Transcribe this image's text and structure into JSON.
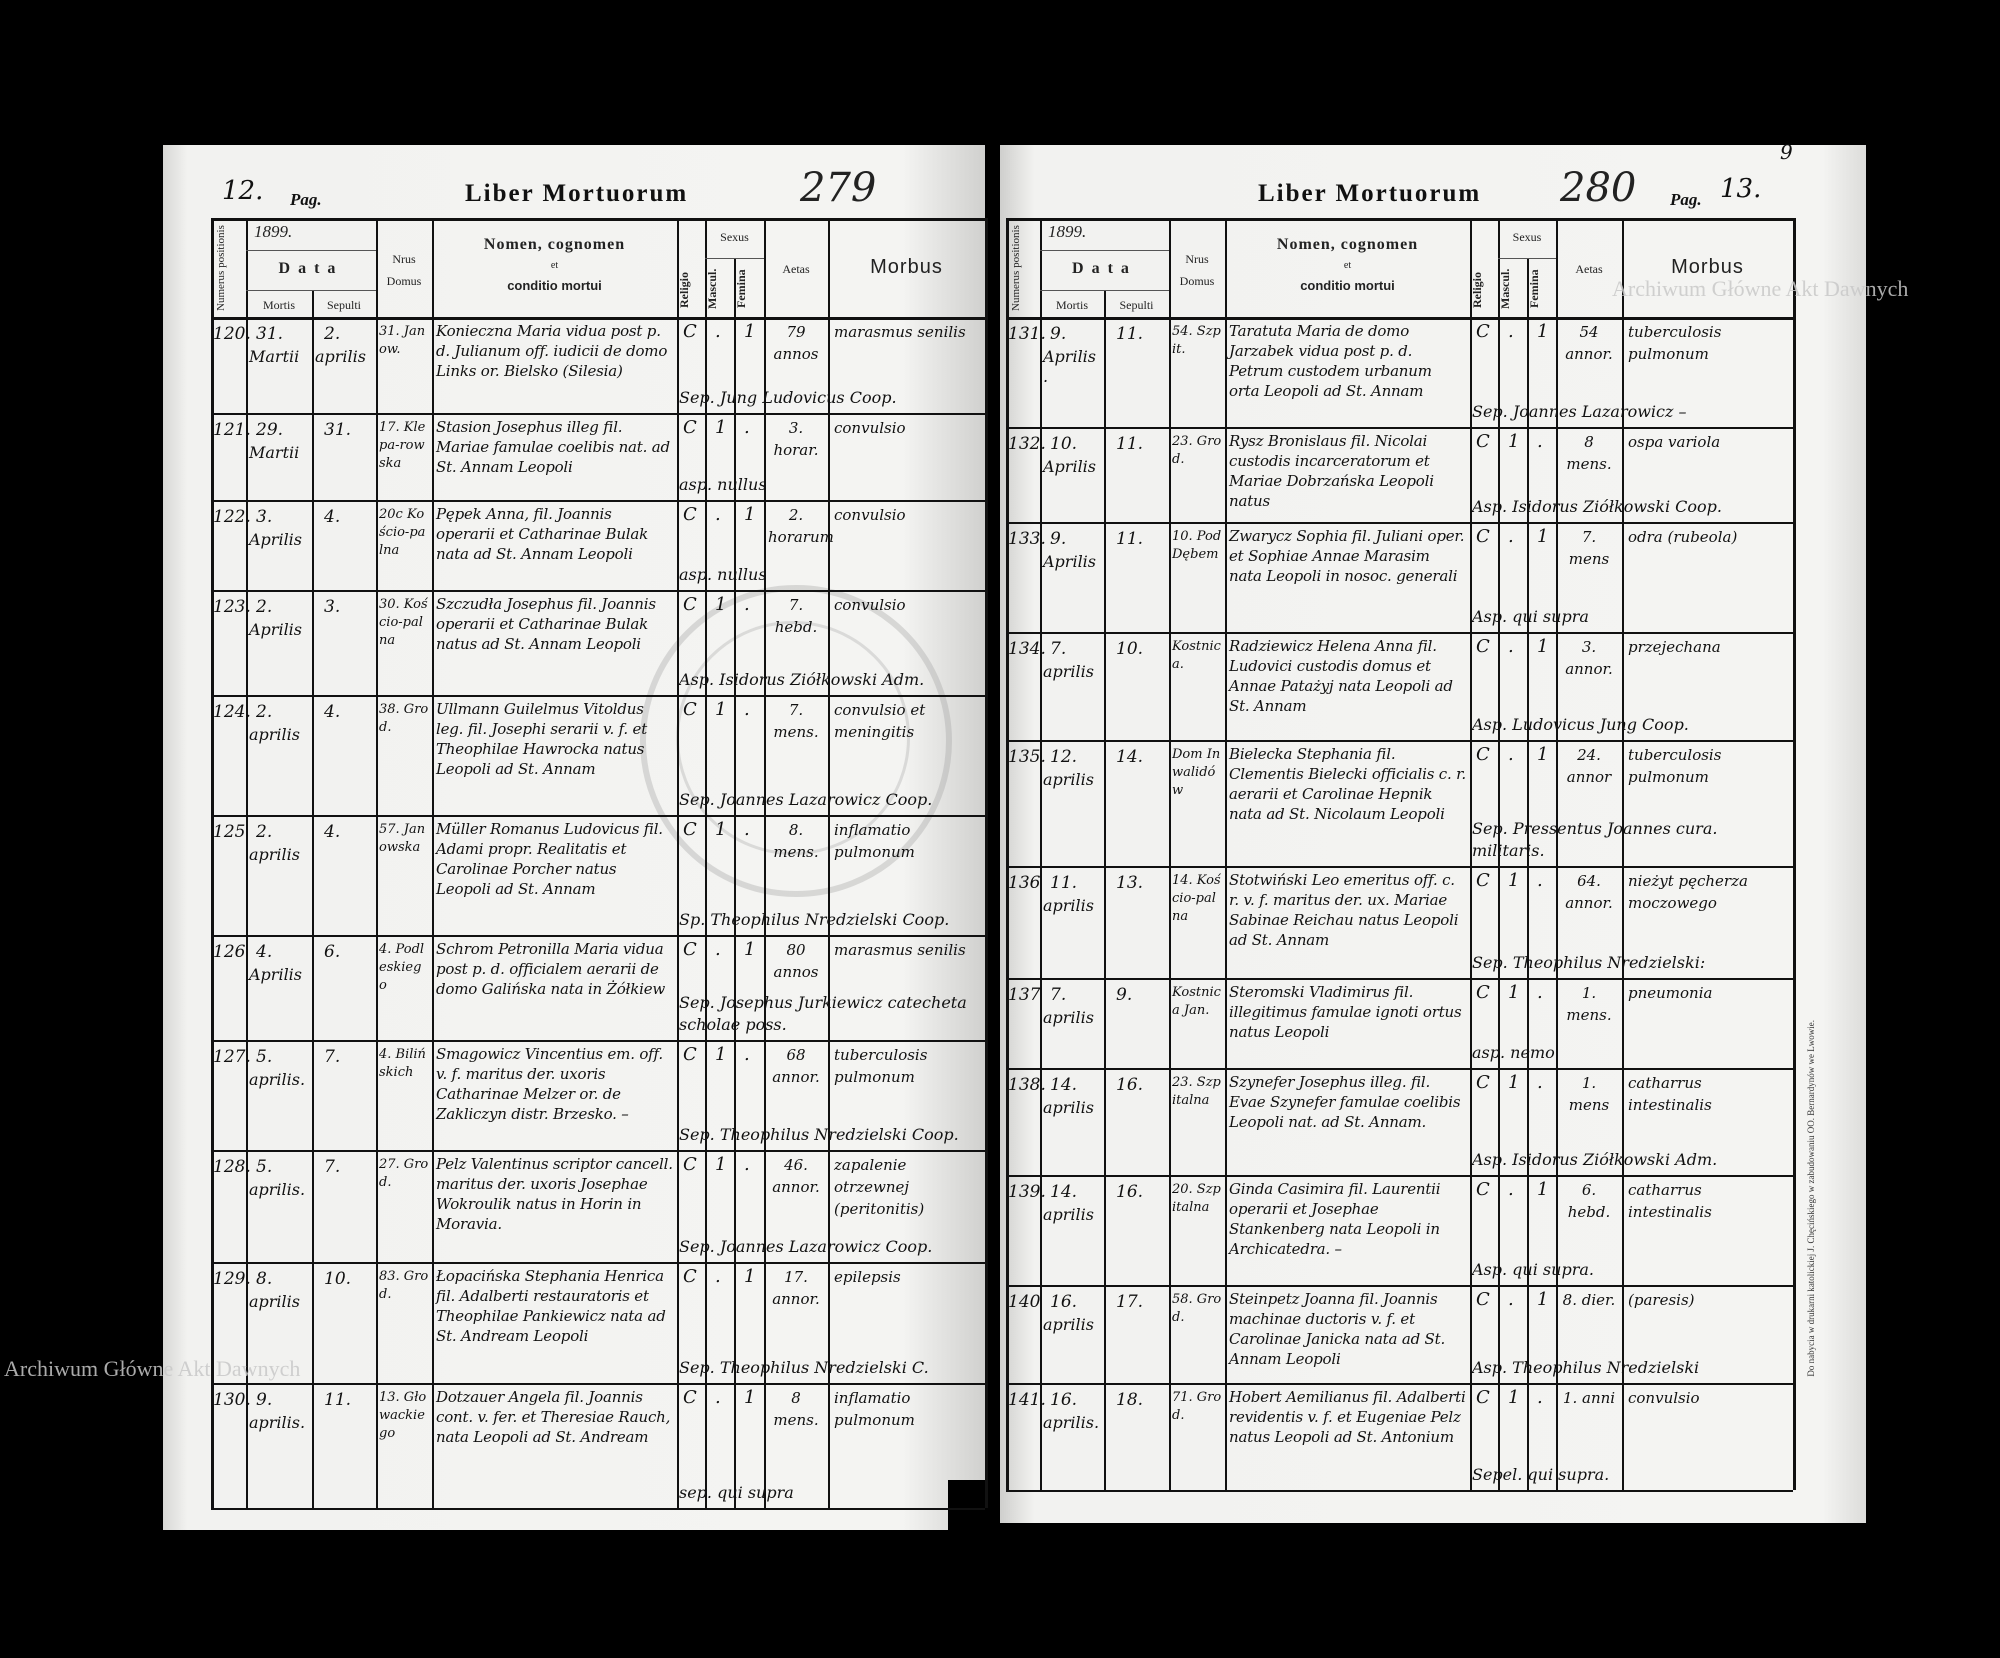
{
  "title": "Liber Mortuorum",
  "watermark": "Archiwum Główne Akt Dawnych",
  "stamp_text": "ARCHIWUM GŁÓWNE AKT DAWNYCH",
  "printer_note": "Do nabycia w drukarni katolickiej J. Chęcińskiego w zabudowaniu OO. Bernardynów we Lwowie.",
  "header": {
    "numerus": "Numerus positionis",
    "year": "1899.",
    "data": "Data",
    "mortis": "Mortis",
    "sepulti": "Sepulti",
    "domus": "Nrus Domus",
    "nomen": "Nomen, cognomen",
    "et": "et",
    "conditio": "conditio mortui",
    "religio": "Religio",
    "sexus": "Sexus",
    "mascul": "Mascul.",
    "femina": "Femina",
    "aetas": "Aetas",
    "morbus": "Morbus"
  },
  "pages": [
    {
      "page_number": "12.",
      "pag_label": "Pag.",
      "folio": "279",
      "entries": [
        {
          "num": "120.",
          "mortis_day": "31.",
          "mortis_month": "Martii",
          "sepulti_day": "2.",
          "sepulti_month": "aprilis",
          "domus": "31. Janow.",
          "name": "Konieczna Maria vidua post p. d. Julianum off. iudicii de domo Links or. Bielsko (Silesia)",
          "religio": "C",
          "masc": ".",
          "fem": "1",
          "aetas": "79 annos",
          "morbus": "marasmus senilis",
          "sepultor": "Sep. Jung Ludovicus Coop."
        },
        {
          "num": "121.",
          "mortis_day": "29.",
          "mortis_month": "Martii",
          "sepulti_day": "31.",
          "sepulti_month": "",
          "domus": "17. Klepa-rowska",
          "name": "Stasion Josephus illeg fil. Mariae famulae coelibis nat. ad St. Annam Leopoli",
          "religio": "C",
          "masc": "1",
          "fem": ".",
          "aetas": "3. horar.",
          "morbus": "convulsio",
          "sepultor": "asp. nullus"
        },
        {
          "num": "122.",
          "mortis_day": "3.",
          "mortis_month": "Aprilis",
          "sepulti_day": "4.",
          "sepulti_month": "",
          "domus": "20c Kościo-palna",
          "name": "Pępek Anna, fil. Joannis operarii et Catharinae Bulak nata ad St. Annam Leopoli",
          "religio": "C",
          "masc": ".",
          "fem": "1",
          "aetas": "2. horarum",
          "morbus": "convulsio",
          "sepultor": "asp. nullus"
        },
        {
          "num": "123.",
          "mortis_day": "2.",
          "mortis_month": "Aprilis",
          "sepulti_day": "3.",
          "sepulti_month": "",
          "domus": "30. Kościo-palna",
          "name": "Szczudła Josephus fil. Joannis operarii et Catharinae Bulak natus ad St. Annam Leopoli",
          "religio": "C",
          "masc": "1",
          "fem": ".",
          "aetas": "7. hebd.",
          "morbus": "convulsio",
          "sepultor": "Asp. Isidorus Ziółkowski Adm."
        },
        {
          "num": "124.",
          "mortis_day": "2.",
          "mortis_month": "aprilis",
          "sepulti_day": "4.",
          "sepulti_month": "",
          "domus": "38. Grod.",
          "name": "Ullmann Guilelmus Vitoldus leg. fil. Josephi serarii v. f. et Theophilae Hawrocka natus Leopoli ad St. Annam",
          "religio": "C",
          "masc": "1",
          "fem": ".",
          "aetas": "7. mens.",
          "morbus": "convulsio et meningitis",
          "sepultor": "Sep. Joannes Lazarowicz Coop."
        },
        {
          "num": "125",
          "mortis_day": "2.",
          "mortis_month": "aprilis",
          "sepulti_day": "4.",
          "sepulti_month": "",
          "domus": "57. Janowska",
          "name": "Müller Romanus Ludovicus fil. Adami propr. Realitatis et Carolinae Porcher natus Leopoli ad St. Annam",
          "religio": "C",
          "masc": "1",
          "fem": ".",
          "aetas": "8. mens.",
          "morbus": "inflamatio pulmonum",
          "sepultor": "Sp. Theophilus Nredzielski Coop."
        },
        {
          "num": "126",
          "mortis_day": "4.",
          "mortis_month": "Aprilis",
          "sepulti_day": "6.",
          "sepulti_month": "",
          "domus": "4. Podleskiego",
          "name": "Schrom Petronilla Maria vidua post p. d. officialem aerarii de domo Galińska nata in Żółkiew",
          "religio": "C",
          "masc": ".",
          "fem": "1",
          "aetas": "80 annos",
          "morbus": "marasmus senilis",
          "sepultor": "Sep. Josephus Jurkiewicz catecheta scholae poss."
        },
        {
          "num": "127.",
          "mortis_day": "5.",
          "mortis_month": "aprilis.",
          "sepulti_day": "7.",
          "sepulti_month": "",
          "domus": "4. Bilińskich",
          "name": "Smagowicz Vincentius em. off. v. f. maritus der. uxoris Catharinae Melzer or. de Zakliczyn distr. Brzesko. –",
          "religio": "C",
          "masc": "1",
          "fem": ".",
          "aetas": "68 annor.",
          "morbus": "tuberculosis pulmonum",
          "sepultor": "Sep. Theophilus Nredzielski Coop."
        },
        {
          "num": "128.",
          "mortis_day": "5.",
          "mortis_month": "aprilis.",
          "sepulti_day": "7.",
          "sepulti_month": "",
          "domus": "27. Grod.",
          "name": "Pelz Valentinus scriptor cancell. maritus der. uxoris Josephae Wokroulik natus in Horin in Moravia.",
          "religio": "C",
          "masc": "1",
          "fem": ".",
          "aetas": "46. annor.",
          "morbus": "zapalenie otrzewnej (peritonitis)",
          "sepultor": "Sep. Joannes Lazarowicz Coop."
        },
        {
          "num": "129.",
          "mortis_day": "8.",
          "mortis_month": "aprilis",
          "sepulti_day": "10.",
          "sepulti_month": "",
          "domus": "83. Grod.",
          "name": "Łopacińska Stephania Henrica fil. Adalberti restauratoris et Theophilae Pankiewicz nata ad St. Andream Leopoli",
          "religio": "C",
          "masc": ".",
          "fem": "1",
          "aetas": "17. annor.",
          "morbus": "epilepsis",
          "sepultor": "Sep. Theophilus Nredzielski C."
        },
        {
          "num": "130.",
          "mortis_day": "9.",
          "mortis_month": "aprilis.",
          "sepulti_day": "11.",
          "sepulti_month": "",
          "domus": "13. Głowackiego",
          "name": "Dotzauer Angela fil. Joannis cont. v. fer. et Theresiae Rauch, nata Leopoli ad St. Andream",
          "religio": "C",
          "masc": ".",
          "fem": "1",
          "aetas": "8 mens.",
          "morbus": "inflamatio pulmonum",
          "sepultor": "sep. qui supra"
        }
      ]
    },
    {
      "page_number": "13.",
      "pag_label": "Pag.",
      "folio": "280",
      "corner_mark": "9",
      "entries": [
        {
          "num": "131.",
          "mortis_day": "9.",
          "mortis_month": "Aprilis.",
          "sepulti_day": "11.",
          "sepulti_month": "",
          "domus": "54. Szpit.",
          "name": "Taratuta Maria de domo Jarzabek vidua post p. d. Petrum custodem urbanum orta Leopoli ad St. Annam",
          "religio": "C",
          "masc": ".",
          "fem": "1",
          "aetas": "54 annor.",
          "morbus": "tuberculosis pulmonum",
          "sepultor": "Sep. Joannes Lazarowicz –"
        },
        {
          "num": "132.",
          "mortis_day": "10.",
          "mortis_month": "Aprilis",
          "sepulti_day": "11.",
          "sepulti_month": "",
          "domus": "23. Grod.",
          "name": "Rysz Bronislaus fil. Nicolai custodis incarceratorum et Mariae Dobrzańska Leopoli natus",
          "religio": "C",
          "masc": "1",
          "fem": ".",
          "aetas": "8 mens.",
          "morbus": "ospa variola",
          "sepultor": "Asp. Isidorus Ziółkowski Coop."
        },
        {
          "num": "133.",
          "mortis_day": "9.",
          "mortis_month": "Aprilis",
          "sepulti_day": "11.",
          "sepulti_month": "",
          "domus": "10. Pod Dębem",
          "name": "Zwarycz Sophia fil. Juliani oper. et Sophiae Annae Marasim nata Leopoli in nosoc. generali",
          "religio": "C",
          "masc": ".",
          "fem": "1",
          "aetas": "7. mens",
          "morbus": "odra (rubeola)",
          "sepultor": "Asp. qui supra"
        },
        {
          "num": "134.",
          "mortis_day": "7.",
          "mortis_month": "aprilis",
          "sepulti_day": "10.",
          "sepulti_month": "",
          "domus": "Kostnica.",
          "name": "Radziewicz Helena Anna fil. Ludovici custodis domus et Annae Patażyj nata Leopoli ad St. Annam",
          "religio": "C",
          "masc": ".",
          "fem": "1",
          "aetas": "3. annor.",
          "morbus": "przejechana",
          "sepultor": "Asp. Ludovicus Jung Coop."
        },
        {
          "num": "135.",
          "mortis_day": "12.",
          "mortis_month": "aprilis",
          "sepulti_day": "14.",
          "sepulti_month": "",
          "domus": "Dom Inwalidów",
          "name": "Bielecka Stephania fil. Clementis Bielecki officialis c. r. aerarii et Carolinae Hepnik nata ad St. Nicolaum Leopoli",
          "religio": "C",
          "masc": ".",
          "fem": "1",
          "aetas": "24. annor",
          "morbus": "tuberculosis pulmonum",
          "sepultor": "Sep. Pressentus Joannes cura. militaris."
        },
        {
          "num": "136",
          "mortis_day": "11.",
          "mortis_month": "aprilis",
          "sepulti_day": "13.",
          "sepulti_month": "",
          "domus": "14. Kościo-palna",
          "name": "Stotwiński Leo emeritus off. c. r. v. f. maritus der. ux. Mariae Sabinae Reichau natus Leopoli ad St. Annam",
          "religio": "C",
          "masc": "1",
          "fem": ".",
          "aetas": "64. annor.",
          "morbus": "nieżyt pęcherza moczowego",
          "sepultor": "Sep. Theophilus Nredzielski:"
        },
        {
          "num": "137",
          "mortis_day": "7.",
          "mortis_month": "aprilis",
          "sepulti_day": "9.",
          "sepulti_month": "",
          "domus": "Kostnica Jan.",
          "name": "Steromski Vladimirus fil. illegitimus famulae ignoti ortus natus Leopoli",
          "religio": "C",
          "masc": "1",
          "fem": ".",
          "aetas": "1. mens.",
          "morbus": "pneumonia",
          "sepultor": "asp. nemo"
        },
        {
          "num": "138.",
          "mortis_day": "14.",
          "mortis_month": "aprilis",
          "sepulti_day": "16.",
          "sepulti_month": "",
          "domus": "23. Szpitalna",
          "name": "Szynefer Josephus illeg. fil. Evae Szynefer famulae coelibis Leopoli nat. ad St. Annam.",
          "religio": "C",
          "masc": "1",
          "fem": ".",
          "aetas": "1. mens",
          "morbus": "catharrus intestinalis",
          "sepultor": "Asp. Isidorus Ziółkowski Adm."
        },
        {
          "num": "139.",
          "mortis_day": "14.",
          "mortis_month": "aprilis",
          "sepulti_day": "16.",
          "sepulti_month": "",
          "domus": "20. Szpitalna",
          "name": "Ginda Casimira fil. Laurentii operarii et Josephae Stankenberg nata Leopoli in Archicatedra. –",
          "religio": "C",
          "masc": ".",
          "fem": "1",
          "aetas": "6. hebd.",
          "morbus": "catharrus intestinalis",
          "sepultor": "Asp. qui supra."
        },
        {
          "num": "140",
          "mortis_day": "16.",
          "mortis_month": "aprilis",
          "sepulti_day": "17.",
          "sepulti_month": "",
          "domus": "58. Grod.",
          "name": "Steinpetz Joanna fil. Joannis machinae ductoris v. f. et Carolinae Janicka nata ad St. Annam Leopoli",
          "religio": "C",
          "masc": ".",
          "fem": "1",
          "aetas": "8. dier.",
          "morbus": "(paresis)",
          "sepultor": "Asp. Theophilus Nredzielski"
        },
        {
          "num": "141.",
          "mortis_day": "16.",
          "mortis_month": "aprilis.",
          "sepulti_day": "18.",
          "sepulti_month": "",
          "domus": "71. Grod.",
          "name": "Hobert Aemilianus fil. Adalberti revidentis v. f. et Eugeniae Pelz natus Leopoli ad St. Antonium",
          "religio": "C",
          "masc": "1",
          "fem": ".",
          "aetas": "1. anni",
          "morbus": "convulsio",
          "sepultor": "Sepel. qui supra."
        }
      ]
    }
  ]
}
